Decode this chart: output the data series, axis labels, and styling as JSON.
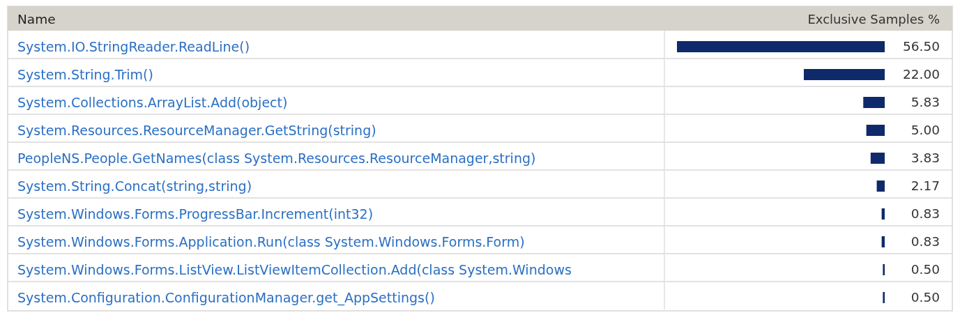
{
  "chart_data": {
    "type": "bar",
    "orientation": "horizontal",
    "ylabel": "Name",
    "xlabel": "Exclusive Samples %",
    "categories": [
      "System.IO.StringReader.ReadLine()",
      "System.String.Trim()",
      "System.Collections.ArrayList.Add(object)",
      "System.Resources.ResourceManager.GetString(string)",
      "PeopleNS.People.GetNames(class System.Resources.ResourceManager,string)",
      "System.String.Concat(string,string)",
      "System.Windows.Forms.ProgressBar.Increment(int32)",
      "System.Windows.Forms.Application.Run(class System.Windows.Forms.Form)",
      "System.Windows.Forms.ListView.ListViewItemCollection.Add(class System.Windows",
      "System.Configuration.ConfigurationManager.get_AppSettings()"
    ],
    "values": [
      56.5,
      22,
      5.83,
      5,
      3.83,
      2.17,
      0.83,
      0.83,
      0.5,
      0.5
    ],
    "value_labels": [
      "56.50",
      "22.00",
      "5.83",
      "5.00",
      "3.83",
      "2.17",
      "0.83",
      "0.83",
      "0.50",
      "0.50"
    ],
    "color": "#0f2a6b"
  }
}
